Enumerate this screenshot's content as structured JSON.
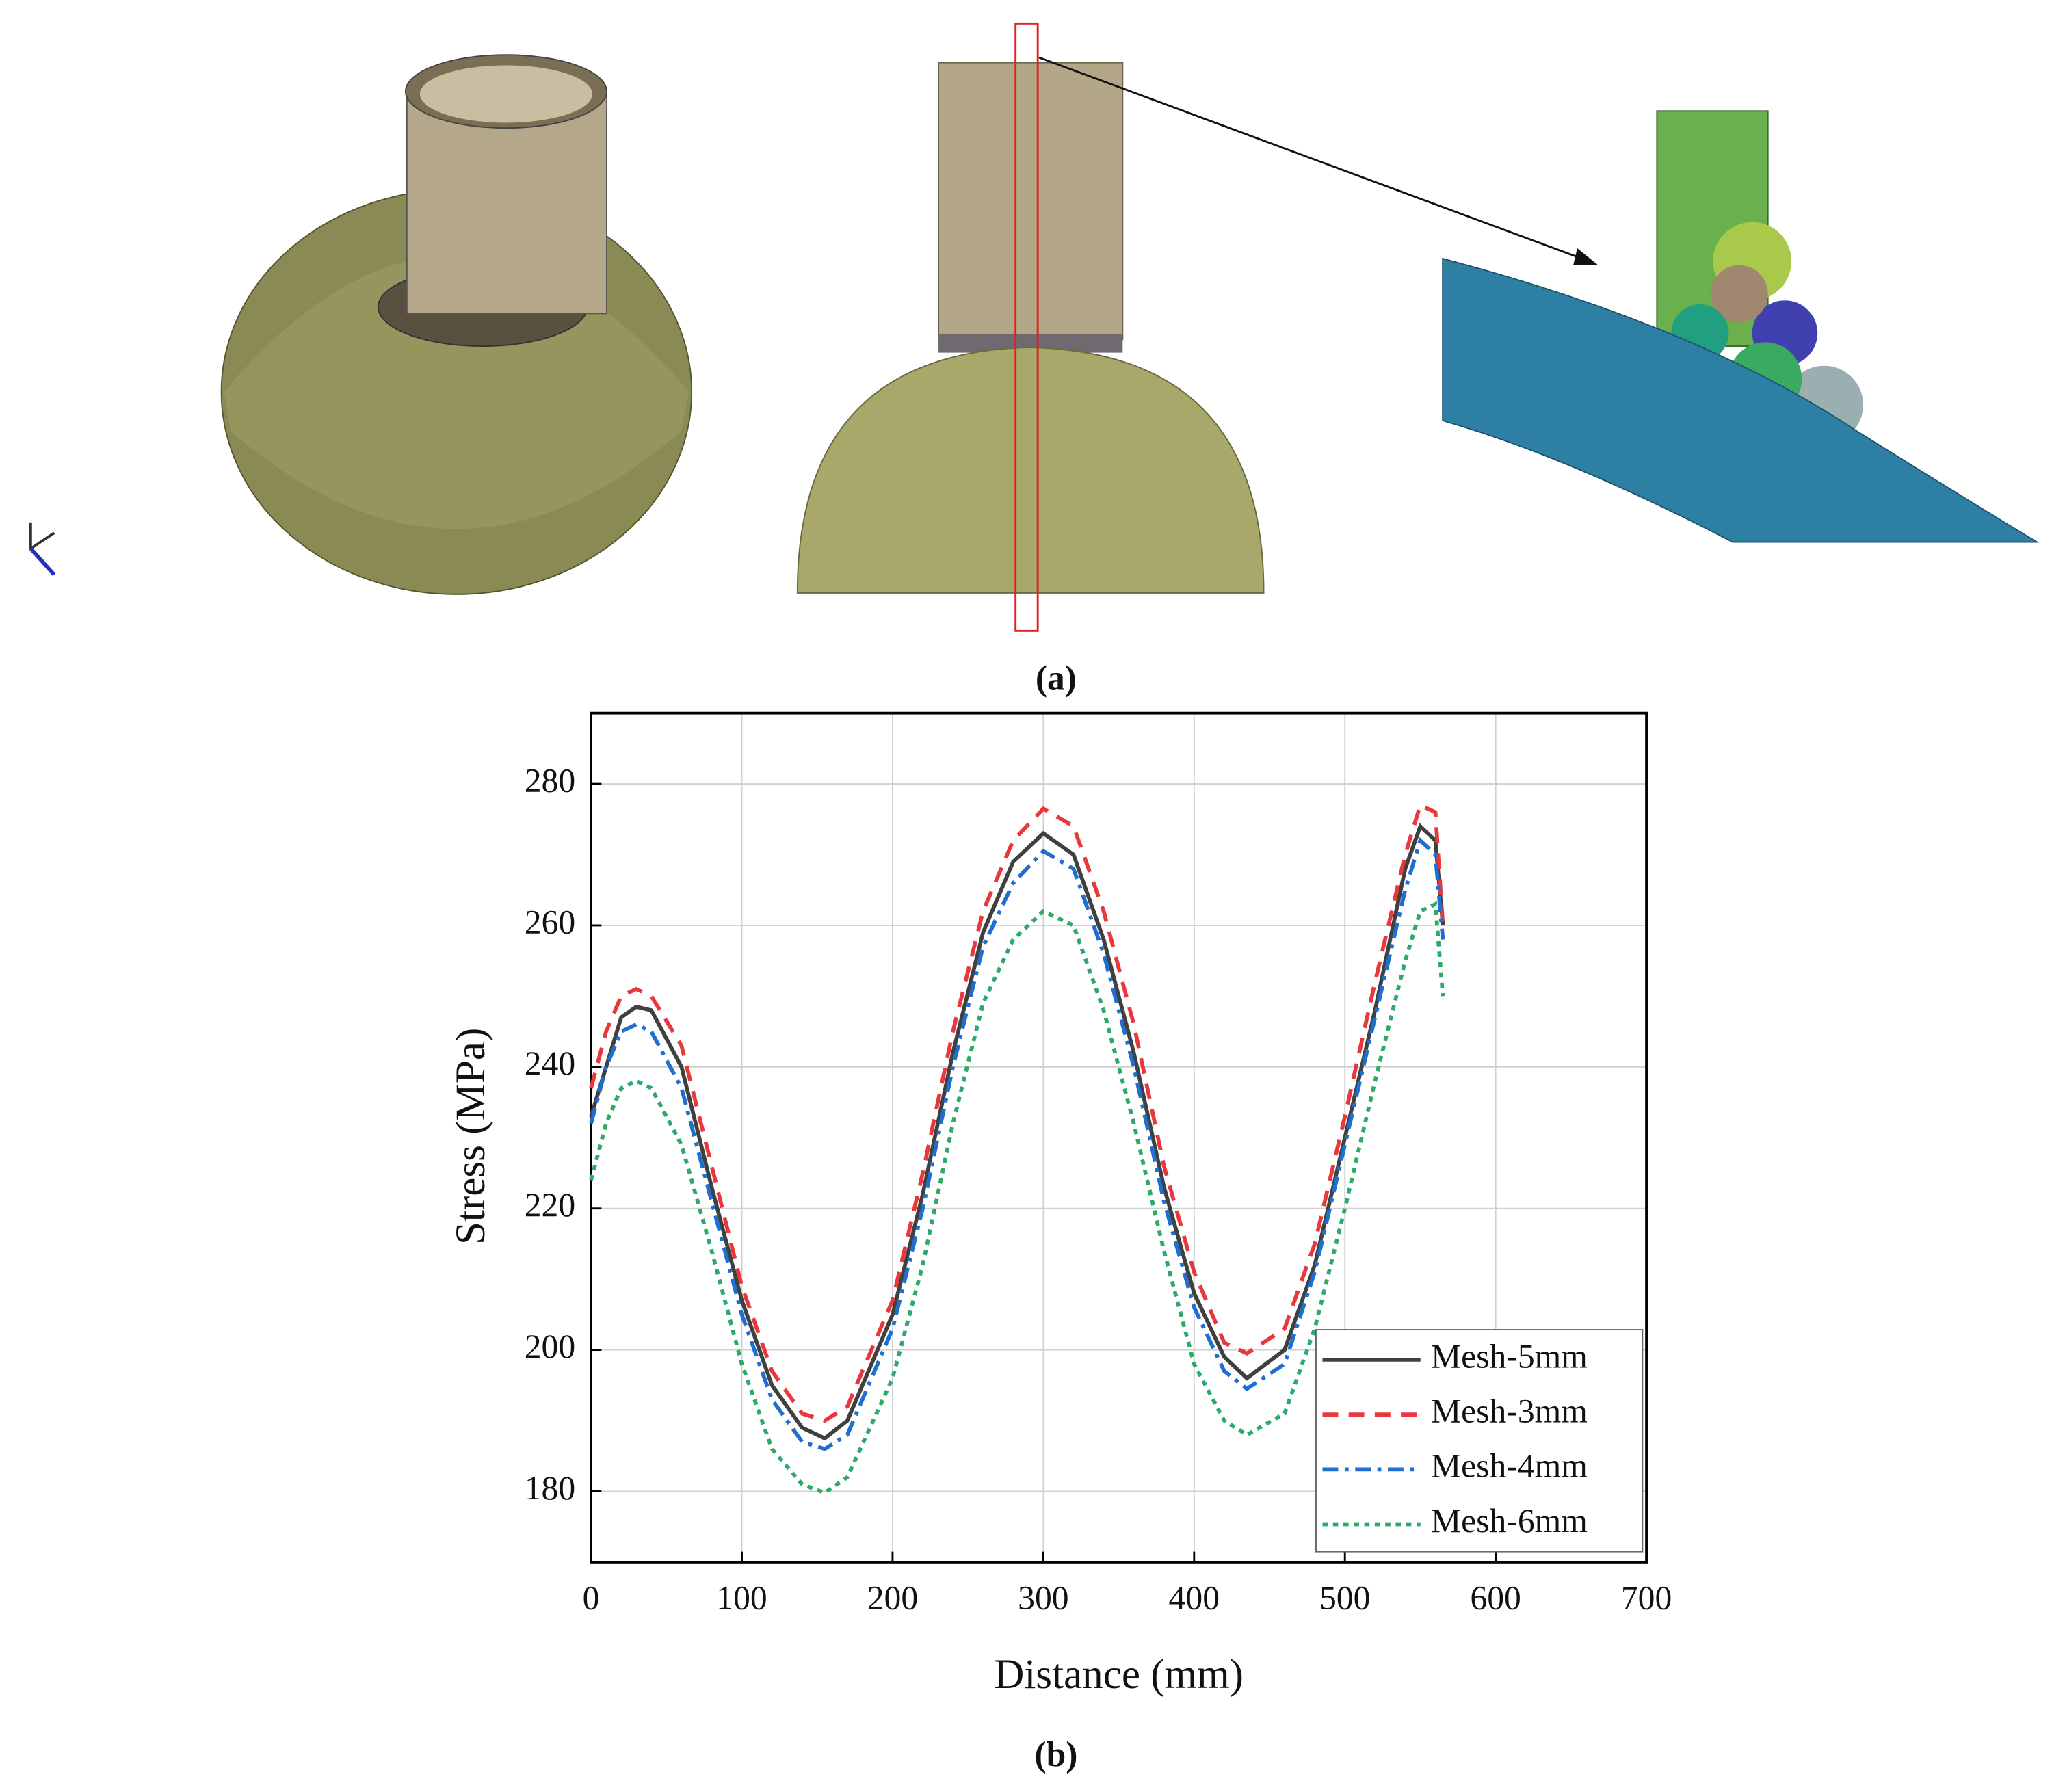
{
  "figure": {
    "panel_a_label": "(a)",
    "panel_b_label": "(b)"
  },
  "chart_data": {
    "type": "line",
    "x_label": "Distance (mm)",
    "y_label": "Stress (MPa)",
    "x": [
      0,
      10,
      20,
      30,
      40,
      60,
      80,
      100,
      120,
      140,
      155,
      170,
      200,
      220,
      240,
      260,
      280,
      300,
      320,
      340,
      360,
      380,
      400,
      420,
      435,
      460,
      480,
      500,
      520,
      540,
      550,
      560,
      565
    ],
    "series": [
      {
        "name": "Mesh-5mm",
        "color": "#404040",
        "dash": "solid",
        "values": [
          233,
          240,
          247,
          248.5,
          248,
          240,
          223,
          207,
          195,
          189,
          187.5,
          190,
          205,
          222,
          242,
          259,
          269,
          273,
          270,
          258,
          242,
          223,
          208,
          199,
          196,
          200,
          212,
          230,
          248,
          268,
          274,
          272,
          260
        ]
      },
      {
        "name": "Mesh-3mm",
        "color": "#e8383d",
        "dash": "dash",
        "values": [
          237,
          245,
          250,
          251,
          250,
          243,
          226,
          209,
          197,
          191,
          190,
          192,
          207,
          225,
          245,
          262,
          272,
          276.5,
          274,
          262,
          246,
          226,
          211,
          201,
          199.5,
          203,
          215,
          233,
          252,
          270,
          277,
          276,
          260
        ]
      },
      {
        "name": "Mesh-4mm",
        "color": "#1f6fd1",
        "dash": "dashdot",
        "values": [
          232,
          240,
          245,
          246,
          245,
          237,
          221,
          205,
          193,
          187,
          186,
          188,
          203,
          220,
          240,
          257,
          266,
          270.5,
          268,
          256,
          240,
          221,
          206,
          197,
          194.5,
          198,
          211,
          229,
          247,
          265,
          272,
          270,
          258
        ]
      },
      {
        "name": "Mesh-6mm",
        "color": "#2daa6a",
        "dash": "dot",
        "values": [
          224,
          232,
          237,
          238,
          237,
          229,
          214,
          198,
          186,
          181,
          179.8,
          182,
          196,
          212,
          232,
          249,
          258,
          262,
          260,
          248,
          232,
          214,
          198,
          190,
          188,
          191,
          203,
          220,
          238,
          255,
          262,
          263,
          250
        ]
      }
    ],
    "xlim": [
      0,
      700
    ],
    "xticks": [
      0,
      100,
      200,
      300,
      400,
      500,
      600,
      700
    ],
    "ylim": [
      170,
      290
    ],
    "yticks": [
      180,
      200,
      220,
      240,
      260,
      280
    ],
    "grid": true,
    "legend": "lower right"
  }
}
